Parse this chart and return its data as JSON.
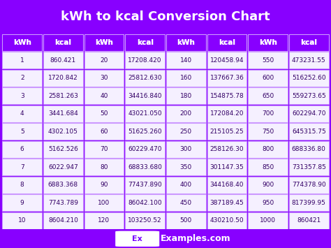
{
  "title": "kWh to kcal Conversion Chart",
  "title_bg": "#7700ff",
  "title_color": "#ffffff",
  "table_bg": "#8800ff",
  "header_color": "#ffffff",
  "cell_bg": "#f5f0ff",
  "cell_text_color": "#330066",
  "border_color": "#cc99ff",
  "footer_bg": "#7700ff",
  "footer_color": "#ffffff",
  "headers": [
    "kWh",
    "kcal",
    "kWh",
    "kcal",
    "kWh",
    "kcal",
    "kWh",
    "kcal"
  ],
  "col1_kwh": [
    1,
    2,
    3,
    4,
    5,
    6,
    7,
    8,
    9,
    10
  ],
  "col1_kcal": [
    "860.421",
    "1720.842",
    "2581.263",
    "3441.684",
    "4302.105",
    "5162.526",
    "6022.947",
    "6883.368",
    "7743.789",
    "8604.210"
  ],
  "col2_kwh": [
    20,
    30,
    40,
    50,
    60,
    70,
    80,
    90,
    100,
    120
  ],
  "col2_kcal": [
    "17208.420",
    "25812.630",
    "34416.840",
    "43021.050",
    "51625.260",
    "60229.470",
    "68833.680",
    "77437.890",
    "86042.100",
    "103250.52"
  ],
  "col3_kwh": [
    140,
    160,
    180,
    200,
    250,
    300,
    350,
    400,
    450,
    500
  ],
  "col3_kcal": [
    "120458.94",
    "137667.36",
    "154875.78",
    "172084.20",
    "215105.25",
    "258126.30",
    "301147.35",
    "344168.40",
    "387189.45",
    "430210.50"
  ],
  "col4_kwh": [
    550,
    600,
    650,
    700,
    750,
    800,
    850,
    900,
    950,
    1000
  ],
  "col4_kcal": [
    "473231.55",
    "516252.60",
    "559273.65",
    "602294.70",
    "645315.75",
    "688336.80",
    "731357.85",
    "774378.90",
    "817399.95",
    "860421"
  ]
}
